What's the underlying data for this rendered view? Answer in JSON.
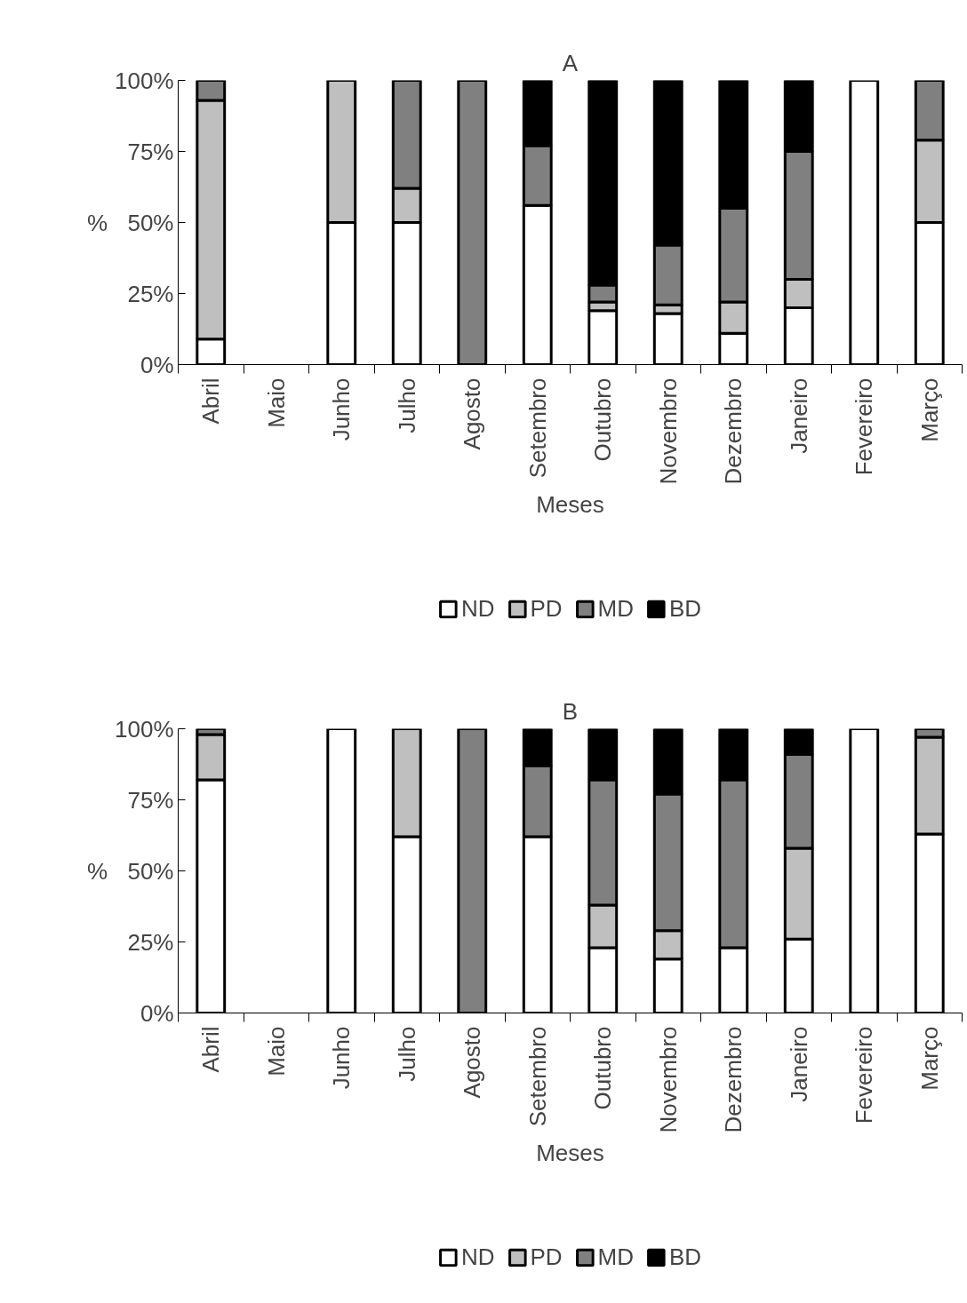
{
  "chart_data": [
    {
      "type": "bar",
      "stacked": true,
      "title": "A",
      "xlabel": "Meses",
      "ylabel": "%",
      "categories": [
        "Abril",
        "Maio",
        "Junho",
        "Julho",
        "Agosto",
        "Setembro",
        "Outubro",
        "Novembro",
        "Dezembro",
        "Janeiro",
        "Fevereiro",
        "Março"
      ],
      "series": [
        {
          "name": "ND",
          "color": "#ffffff",
          "values": [
            9,
            null,
            50,
            50,
            0,
            56,
            19,
            18,
            11,
            20,
            100,
            50
          ]
        },
        {
          "name": "PD",
          "color": "#bfbfbf",
          "values": [
            84,
            null,
            50,
            12,
            0,
            0,
            3,
            3,
            11,
            10,
            0,
            29
          ]
        },
        {
          "name": "MD",
          "color": "#808080",
          "values": [
            7,
            null,
            0,
            38,
            100,
            21,
            6,
            21,
            33,
            45,
            0,
            21
          ]
        },
        {
          "name": "BD",
          "color": "#000000",
          "values": [
            0,
            null,
            0,
            0,
            0,
            23,
            72,
            58,
            45,
            25,
            0,
            0
          ]
        }
      ],
      "ylim": [
        0,
        100
      ],
      "yticks": [
        {
          "value": 0,
          "label": "0%"
        },
        {
          "value": 25,
          "label": "25%"
        },
        {
          "value": 50,
          "label": "50%"
        },
        {
          "value": 75,
          "label": "75%"
        },
        {
          "value": 100,
          "label": "100%"
        }
      ],
      "grid": false,
      "legend": "bottom"
    },
    {
      "type": "bar",
      "stacked": true,
      "title": "B",
      "xlabel": "Meses",
      "ylabel": "%",
      "categories": [
        "Abril",
        "Maio",
        "Junho",
        "Julho",
        "Agosto",
        "Setembro",
        "Outubro",
        "Novembro",
        "Dezembro",
        "Janeiro",
        "Fevereiro",
        "Março"
      ],
      "series": [
        {
          "name": "ND",
          "color": "#ffffff",
          "values": [
            82,
            null,
            100,
            62,
            0,
            62,
            23,
            19,
            23,
            26,
            100,
            63
          ]
        },
        {
          "name": "PD",
          "color": "#bfbfbf",
          "values": [
            16,
            null,
            0,
            38,
            0,
            0,
            15,
            10,
            0,
            32,
            0,
            34
          ]
        },
        {
          "name": "MD",
          "color": "#808080",
          "values": [
            2,
            null,
            0,
            0,
            100,
            25,
            44,
            48,
            59,
            33,
            0,
            3
          ]
        },
        {
          "name": "BD",
          "color": "#000000",
          "values": [
            0,
            null,
            0,
            0,
            0,
            13,
            18,
            23,
            18,
            9,
            0,
            0
          ]
        }
      ],
      "ylim": [
        0,
        100
      ],
      "yticks": [
        {
          "value": 0,
          "label": "0%"
        },
        {
          "value": 25,
          "label": "25%"
        },
        {
          "value": 50,
          "label": "50%"
        },
        {
          "value": 75,
          "label": "75%"
        },
        {
          "value": 100,
          "label": "100%"
        }
      ],
      "grid": false,
      "legend": "bottom"
    }
  ]
}
